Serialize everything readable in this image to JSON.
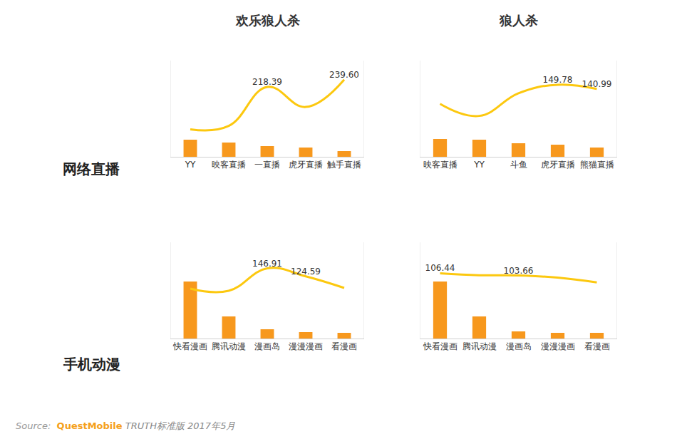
{
  "columns": [
    "欢乐狼人杀",
    "狼人杀"
  ],
  "rows": [
    "网络直播",
    "手机动漫"
  ],
  "source": {
    "prefix": "Source:",
    "brand": "QuestMobile",
    "text": "TRUTH标准版 2017年5月"
  },
  "chart_data": [
    {
      "type": "bar",
      "tick_labels": "x",
      "grid": false,
      "categories": [
        "YY",
        "映客直播",
        "一直播",
        "虎牙直播",
        "触手直播"
      ],
      "ylim": [
        0,
        135
      ],
      "y2lim": [
        15,
        295
      ],
      "series": [
        {
          "type": "bar",
          "color": "#f7981d",
          "values": [
            24,
            20,
            15,
            13,
            8
          ]
        },
        {
          "type": "line",
          "axis": "y2",
          "color": "#fcc80f",
          "line_style": "solid",
          "values": [
            95,
            105,
            218.39,
            160,
            239.6
          ],
          "value_labels": [
            null,
            null,
            "218.39",
            null,
            "239.60"
          ]
        }
      ]
    },
    {
      "type": "bar",
      "tick_labels": "x",
      "grid": false,
      "categories": [
        "映客直播",
        "YY",
        "斗鱼",
        "虎牙直播",
        "熊猫直播"
      ],
      "ylim": [
        0,
        135
      ],
      "y2lim": [
        0,
        200
      ],
      "series": [
        {
          "type": "bar",
          "color": "#f7981d",
          "values": [
            25,
            24,
            19,
            17,
            13
          ]
        },
        {
          "type": "line",
          "axis": "y2",
          "color": "#fcc80f",
          "line_style": "solid",
          "values": [
            110,
            85,
            132,
            149.78,
            140.99
          ],
          "value_labels": [
            null,
            null,
            null,
            "149.78",
            "140.99"
          ]
        }
      ]
    },
    {
      "type": "bar",
      "tick_labels": "x",
      "grid": false,
      "categories": [
        "快看漫画",
        "腾讯动漫",
        "漫画岛",
        "漫漫漫画",
        "看漫画"
      ],
      "ylim": [
        0,
        135
      ],
      "y2lim": [
        -50,
        220
      ],
      "series": [
        {
          "type": "bar",
          "color": "#f7981d",
          "values": [
            80,
            31,
            13,
            9,
            8
          ]
        },
        {
          "type": "line",
          "axis": "y2",
          "color": "#fcc80f",
          "line_style": "solid",
          "values": [
            90,
            84,
            146.91,
            124.59,
            92
          ],
          "value_labels": [
            null,
            null,
            "146.91",
            "124.59",
            null
          ]
        }
      ]
    },
    {
      "type": "bar",
      "tick_labels": "x",
      "grid": false,
      "categories": [
        "快看漫画",
        "腾讯动漫",
        "漫画岛",
        "漫漫漫画",
        "看漫画"
      ],
      "ylim": [
        0,
        135
      ],
      "y2lim": [
        25,
        145
      ],
      "series": [
        {
          "type": "bar",
          "color": "#f7981d",
          "values": [
            80,
            31,
            10,
            8,
            8
          ]
        },
        {
          "type": "line",
          "axis": "y2",
          "color": "#fcc80f",
          "line_style": "solid",
          "values": [
            106.44,
            104,
            103.66,
            101,
            95
          ],
          "value_labels": [
            "106.44",
            null,
            "103.66",
            null,
            null
          ]
        }
      ]
    }
  ]
}
